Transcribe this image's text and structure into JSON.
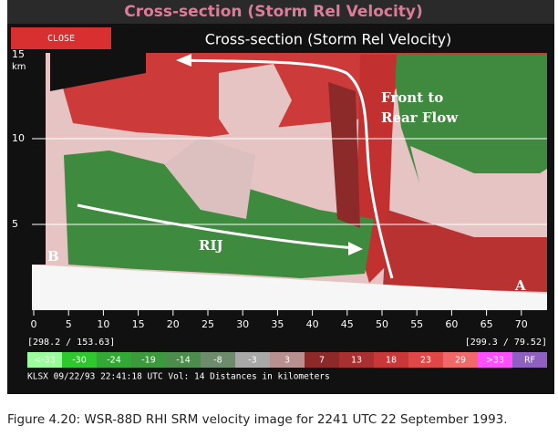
{
  "window_title": "Cross-section (Storm Rel Velocity)",
  "header": {
    "close": "CLOSE",
    "title": "Cross-section (Storm Rel Velocity)"
  },
  "plot": {
    "y_labels": [
      "15",
      "km",
      "10",
      "5"
    ],
    "markers": [
      "B",
      "A"
    ],
    "annotations": [
      "Front to",
      "Rear Flow",
      "RIJ"
    ],
    "x_ticks": [
      "0",
      "5",
      "10",
      "15",
      "20",
      "25",
      "30",
      "35",
      "40",
      "45",
      "50",
      "55",
      "60",
      "65",
      "70"
    ],
    "coords": [
      "[298.2 / 153.63]",
      "[299.3 / 79.52]"
    ]
  },
  "scale": [
    {
      "label": "<-33",
      "color": "#9aff9a"
    },
    {
      "label": "-30",
      "color": "#2ec82e"
    },
    {
      "label": "-24",
      "color": "#34a834"
    },
    {
      "label": "-19",
      "color": "#3c9a3c"
    },
    {
      "label": "-14",
      "color": "#4c8c4c"
    },
    {
      "label": "-8",
      "color": "#6c8c6c"
    },
    {
      "label": "-3",
      "color": "#a8a8a8"
    },
    {
      "label": "3",
      "color": "#b89090"
    },
    {
      "label": "7",
      "color": "#8c2a2a"
    },
    {
      "label": "13",
      "color": "#a83030"
    },
    {
      "label": "18",
      "color": "#c83838"
    },
    {
      "label": "23",
      "color": "#e04848"
    },
    {
      "label": "29",
      "color": "#f06868"
    },
    {
      "label": ">33",
      "color": "#ff50ff"
    },
    {
      "label": "RF",
      "color": "#9060c0"
    }
  ],
  "footer": "KLSX 09/22/93 22:41:18 UTC Vol: 14 Distances in kilometers",
  "caption": "Figure 4.20: WSR-88D RHI SRM velocity image for 2241 UTC 22 September 1993."
}
